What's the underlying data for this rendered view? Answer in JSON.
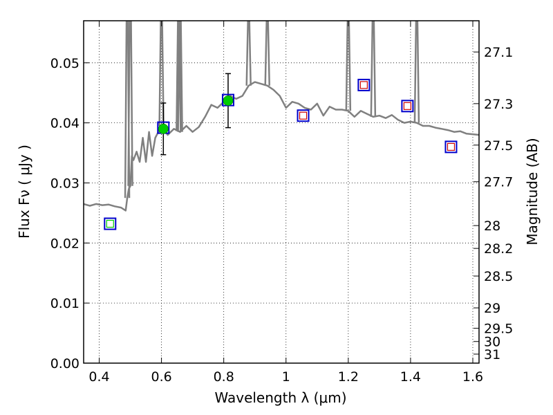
{
  "chart_data": {
    "type": "scatter",
    "xlabel": "Wavelength  λ (μm)",
    "ylabel": "Flux  Fν  ( μJy )",
    "y2label": "Magnitude (AB)",
    "xlim": [
      0.35,
      1.62
    ],
    "ylim": [
      0.0,
      0.057
    ],
    "grid": true,
    "x_ticks": [
      0.4,
      0.6,
      0.8,
      1.0,
      1.2,
      1.4,
      1.6
    ],
    "x_tick_labels": [
      "0.4",
      "0.6",
      "0.8",
      "1",
      "1.2",
      "1.4",
      "1.6"
    ],
    "y_ticks": [
      0.0,
      0.01,
      0.02,
      0.03,
      0.04,
      0.05
    ],
    "y_tick_labels": [
      "0.00",
      "0.01",
      "0.02",
      "0.03",
      "0.04",
      "0.05"
    ],
    "y2_ticks": [
      {
        "label": "27.1",
        "flux": 0.0518
      },
      {
        "label": "27.3",
        "flux": 0.0432
      },
      {
        "label": "27.5",
        "flux": 0.0363
      },
      {
        "label": "27.7",
        "flux": 0.0302
      },
      {
        "label": "28",
        "flux": 0.0229
      },
      {
        "label": "28.2",
        "flux": 0.0191
      },
      {
        "label": "28.5",
        "flux": 0.0145
      },
      {
        "label": "29",
        "flux": 0.0092
      },
      {
        "label": "29.5",
        "flux": 0.0058
      },
      {
        "label": "30",
        "flux": 0.0036
      },
      {
        "label": "31",
        "flux": 0.0015
      }
    ],
    "series": [
      {
        "kind": "model_spectrum",
        "color": "#808080",
        "x": [
          0.35,
          0.37,
          0.39,
          0.41,
          0.43,
          0.45,
          0.47,
          0.485,
          0.49,
          0.495,
          0.5,
          0.505,
          0.51,
          0.52,
          0.53,
          0.54,
          0.55,
          0.56,
          0.57,
          0.58,
          0.6,
          0.62,
          0.64,
          0.66,
          0.68,
          0.7,
          0.72,
          0.74,
          0.76,
          0.78,
          0.8,
          0.82,
          0.84,
          0.86,
          0.88,
          0.9,
          0.92,
          0.94,
          0.96,
          0.98,
          1.0,
          1.02,
          1.04,
          1.06,
          1.08,
          1.1,
          1.12,
          1.14,
          1.16,
          1.18,
          1.2,
          1.22,
          1.24,
          1.26,
          1.28,
          1.3,
          1.32,
          1.34,
          1.36,
          1.38,
          1.4,
          1.42,
          1.44,
          1.46,
          1.48,
          1.5,
          1.52,
          1.54,
          1.56,
          1.58,
          1.6,
          1.62
        ],
        "y": [
          0.0265,
          0.0262,
          0.0265,
          0.0263,
          0.0264,
          0.0261,
          0.0259,
          0.0254,
          0.0275,
          0.029,
          0.0295,
          0.0345,
          0.0338,
          0.0352,
          0.0335,
          0.0375,
          0.0335,
          0.0385,
          0.0345,
          0.0375,
          0.0395,
          0.038,
          0.039,
          0.0385,
          0.0395,
          0.0385,
          0.0393,
          0.041,
          0.043,
          0.0425,
          0.0435,
          0.0445,
          0.044,
          0.0445,
          0.0462,
          0.0468,
          0.0465,
          0.0462,
          0.0455,
          0.0445,
          0.0425,
          0.0435,
          0.0432,
          0.0425,
          0.0422,
          0.0432,
          0.0412,
          0.0427,
          0.0422,
          0.0422,
          0.042,
          0.041,
          0.042,
          0.0415,
          0.041,
          0.0412,
          0.0408,
          0.0413,
          0.0405,
          0.04,
          0.0402,
          0.04,
          0.0395,
          0.0395,
          0.0392,
          0.039,
          0.0388,
          0.0385,
          0.0386,
          0.0382,
          0.0381,
          0.038
        ]
      },
      {
        "kind": "emission_lines",
        "color": "#808080",
        "x": [
          0.49,
          0.5,
          0.6,
          0.655,
          0.66,
          0.88,
          0.94,
          1.2,
          1.28,
          1.42
        ],
        "y": [
          0.057,
          0.057,
          0.057,
          0.057,
          0.057,
          0.057,
          0.057,
          0.057,
          0.057,
          0.057
        ]
      },
      {
        "kind": "photometry_model",
        "marker": "open_square",
        "color": "#0000cc",
        "x": [
          0.435,
          0.606,
          0.814,
          1.055,
          1.25,
          1.39,
          1.53
        ],
        "y": [
          0.0232,
          0.0392,
          0.0438,
          0.0412,
          0.0463,
          0.0428,
          0.036
        ]
      },
      {
        "kind": "upper_limits",
        "marker": "open_square",
        "color": "#cc0000",
        "x": [
          1.055,
          1.25,
          1.39,
          1.53
        ],
        "y": [
          0.0412,
          0.0463,
          0.0428,
          0.036
        ]
      },
      {
        "kind": "observed",
        "marker": "filled_circle",
        "color": "#00cc00",
        "x": [
          0.606,
          0.814
        ],
        "y": [
          0.039,
          0.0437
        ],
        "yerr": [
          0.0043,
          0.0045
        ]
      },
      {
        "kind": "observed_weak",
        "marker": "open_square",
        "color": "#00cc00",
        "x": [
          0.435
        ],
        "y": [
          0.0232
        ]
      }
    ]
  }
}
